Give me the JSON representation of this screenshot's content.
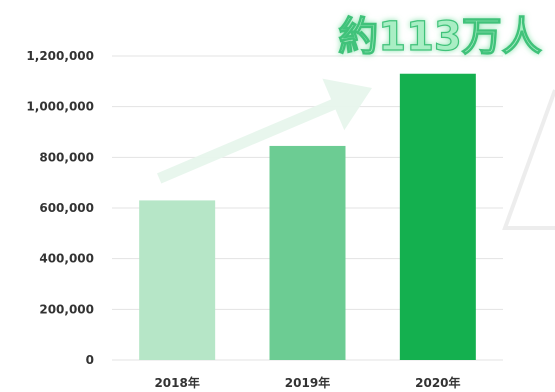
{
  "chart_data": {
    "type": "bar",
    "categories": [
      "2018年",
      "2019年",
      "2020年"
    ],
    "values": [
      630000,
      845000,
      1130000
    ],
    "ylim": [
      0,
      1200000
    ],
    "yticks": [
      0,
      200000,
      400000,
      600000,
      800000,
      1000000,
      1200000
    ],
    "ytick_labels": [
      "0",
      "200,000",
      "400,000",
      "600,000",
      "800,000",
      "1,000,000",
      "1,200,000"
    ],
    "bar_colors": [
      "#b6e6c7",
      "#6ccc93",
      "#14b04f"
    ],
    "grid": true,
    "annotation": "約113万人",
    "annotation_color": "#a9eec4",
    "arrow_color": "#e7f6ec"
  }
}
